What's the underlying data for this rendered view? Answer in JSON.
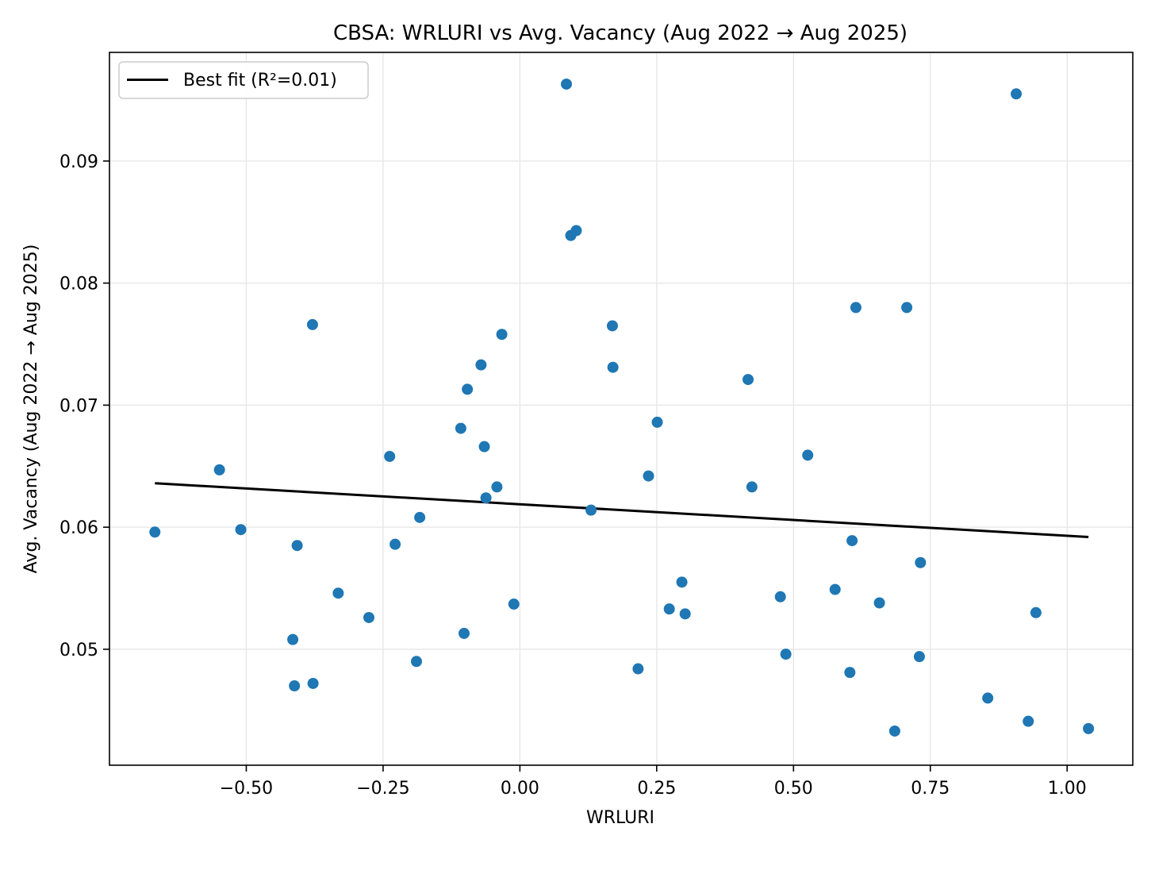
{
  "chart_data": {
    "type": "scatter",
    "title": "CBSA: WRLURI vs Avg. Vacancy (Aug 2022 → Aug 2025)",
    "xlabel": "WRLURI",
    "ylabel": "Avg. Vacancy (Aug 2022 → Aug 2025)",
    "xlim": [
      -0.75,
      1.12
    ],
    "ylim": [
      0.0405,
      0.0989
    ],
    "xticks": [
      -0.5,
      -0.25,
      0.0,
      0.25,
      0.5,
      0.75,
      1.0
    ],
    "xtick_labels": [
      "−0.50",
      "−0.25",
      "0.00",
      "0.25",
      "0.50",
      "0.75",
      "1.00"
    ],
    "yticks": [
      0.05,
      0.06,
      0.07,
      0.08,
      0.09
    ],
    "ytick_labels": [
      "0.05",
      "0.06",
      "0.07",
      "0.08",
      "0.09"
    ],
    "grid": true,
    "legend_position": "top-left",
    "colors": {
      "points": "#1f77b4",
      "fit_line": "#000000",
      "grid": "#e6e6e6",
      "axes": "#000000"
    },
    "series": [
      {
        "values": [
          {
            "x": -0.667,
            "y": 0.0596
          },
          {
            "x": -0.549,
            "y": 0.0647
          },
          {
            "x": -0.51,
            "y": 0.0598
          },
          {
            "x": -0.415,
            "y": 0.0508
          },
          {
            "x": -0.412,
            "y": 0.047
          },
          {
            "x": -0.407,
            "y": 0.0585
          },
          {
            "x": -0.379,
            "y": 0.0766
          },
          {
            "x": -0.378,
            "y": 0.0472
          },
          {
            "x": -0.332,
            "y": 0.0546
          },
          {
            "x": -0.276,
            "y": 0.0526
          },
          {
            "x": -0.238,
            "y": 0.0658
          },
          {
            "x": -0.228,
            "y": 0.0586
          },
          {
            "x": -0.189,
            "y": 0.049
          },
          {
            "x": -0.183,
            "y": 0.0608
          },
          {
            "x": -0.108,
            "y": 0.0681
          },
          {
            "x": -0.102,
            "y": 0.0513
          },
          {
            "x": -0.096,
            "y": 0.0713
          },
          {
            "x": -0.071,
            "y": 0.0733
          },
          {
            "x": -0.065,
            "y": 0.0666
          },
          {
            "x": -0.062,
            "y": 0.0624
          },
          {
            "x": -0.042,
            "y": 0.0633
          },
          {
            "x": -0.033,
            "y": 0.0758
          },
          {
            "x": -0.011,
            "y": 0.0537
          },
          {
            "x": 0.085,
            "y": 0.0963
          },
          {
            "x": 0.093,
            "y": 0.0839
          },
          {
            "x": 0.103,
            "y": 0.0843
          },
          {
            "x": 0.13,
            "y": 0.0614
          },
          {
            "x": 0.169,
            "y": 0.0765
          },
          {
            "x": 0.17,
            "y": 0.0731
          },
          {
            "x": 0.216,
            "y": 0.0484
          },
          {
            "x": 0.235,
            "y": 0.0642
          },
          {
            "x": 0.251,
            "y": 0.0686
          },
          {
            "x": 0.273,
            "y": 0.0533
          },
          {
            "x": 0.296,
            "y": 0.0555
          },
          {
            "x": 0.302,
            "y": 0.0529
          },
          {
            "x": 0.417,
            "y": 0.0721
          },
          {
            "x": 0.424,
            "y": 0.0633
          },
          {
            "x": 0.476,
            "y": 0.0543
          },
          {
            "x": 0.486,
            "y": 0.0496
          },
          {
            "x": 0.526,
            "y": 0.0659
          },
          {
            "x": 0.576,
            "y": 0.0549
          },
          {
            "x": 0.603,
            "y": 0.0481
          },
          {
            "x": 0.607,
            "y": 0.0589
          },
          {
            "x": 0.614,
            "y": 0.078
          },
          {
            "x": 0.657,
            "y": 0.0538
          },
          {
            "x": 0.685,
            "y": 0.0433
          },
          {
            "x": 0.707,
            "y": 0.078
          },
          {
            "x": 0.73,
            "y": 0.0494
          },
          {
            "x": 0.732,
            "y": 0.0571
          },
          {
            "x": 0.855,
            "y": 0.046
          },
          {
            "x": 0.907,
            "y": 0.0955
          },
          {
            "x": 0.929,
            "y": 0.0441
          },
          {
            "x": 0.943,
            "y": 0.053
          },
          {
            "x": 1.039,
            "y": 0.0435
          }
        ]
      }
    ],
    "fit_line": {
      "name": "Best fit (R²=0.01)",
      "x": [
        -0.667,
        1.039
      ],
      "y": [
        0.0636,
        0.0592
      ]
    }
  }
}
